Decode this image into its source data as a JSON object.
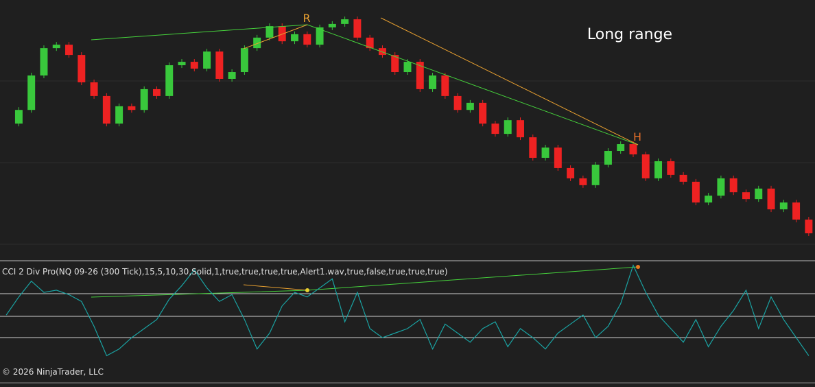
{
  "chart_data": [
    {
      "type": "candlestick",
      "title": "Long range",
      "annotations": [
        "R",
        "H"
      ],
      "series": [
        {
          "name": "NQ 09-26 (300 Tick)",
          "color": "#39c83c",
          "down_color": "#ee2222",
          "values": [
            49.4,
            55,
            69.1,
            80.3,
            81.7,
            77.5,
            66.3,
            60.7,
            49.4,
            56.5,
            55,
            63.5,
            60.7,
            73.3,
            74.7,
            71.9,
            78.9,
            67.7,
            70.5,
            80.3,
            84.6,
            89.3,
            83.1,
            86,
            81.7,
            88.8,
            90.2,
            92.1,
            84.6,
            80.3,
            77.5,
            70.5,
            74.7,
            63.5,
            69.1,
            60.7,
            55,
            57.9,
            49.4,
            45.2,
            50.8,
            43.8,
            35.4,
            39.6,
            31.2,
            27,
            24.2,
            32.6,
            38.2,
            41,
            36.8,
            27,
            34,
            28.4,
            25.6,
            17.1,
            19.9,
            27,
            21.3,
            18.5,
            22.8,
            14.3,
            17.1,
            10.1,
            4.5
          ]
        }
      ],
      "ylim": [
        0,
        100
      ]
    },
    {
      "type": "line",
      "title": "CCI 2 Div Pro(NQ 09-26 (300 Tick),15,5,10,30,Solid,1,true,true,true,true,Alert1.wav,true,false,true,true,true)",
      "footer": "© 2026 NinjaTrader, LLC",
      "series": [
        {
          "name": "CCI",
          "color": "#1aa3a3",
          "values": [
            0,
            80,
            150,
            100,
            110,
            90,
            60,
            -50,
            -180,
            -150,
            -100,
            -60,
            -20,
            70,
            130,
            200,
            120,
            60,
            90,
            -20,
            -150,
            -80,
            40,
            100,
            80,
            120,
            160,
            -30,
            100,
            -60,
            -100,
            -80,
            -60,
            -20,
            -150,
            -40,
            -80,
            -120,
            -60,
            -30,
            -140,
            -60,
            -100,
            -150,
            -80,
            -40,
            0,
            -100,
            -50,
            50,
            220,
            100,
            0,
            -60,
            -120,
            -20,
            -140,
            -50,
            20,
            110,
            -60,
            80,
            -20,
            -100,
            -180
          ]
        }
      ],
      "ylim": [
        -300,
        240
      ]
    }
  ]
}
